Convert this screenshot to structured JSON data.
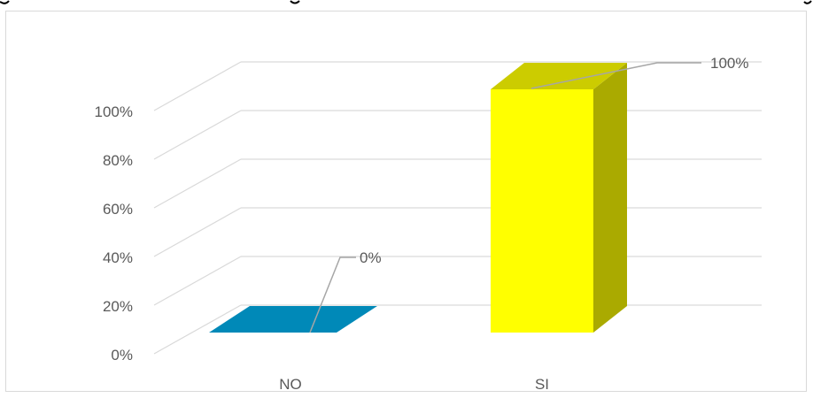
{
  "chart_data": {
    "type": "bar",
    "title": "",
    "xlabel": "",
    "ylabel": "",
    "categories": [
      "NO",
      "SI"
    ],
    "values": [
      0,
      100
    ],
    "ylim": [
      0,
      100
    ],
    "y_ticks": [
      0,
      20,
      40,
      60,
      80,
      100
    ],
    "y_tick_labels": [
      "0%",
      "20%",
      "40%",
      "60%",
      "80%",
      "100%"
    ],
    "data_labels": [
      "0%",
      "100%"
    ],
    "grid": true,
    "legend": "none",
    "style": "3d-column",
    "colors": {
      "NO": {
        "front": "#0089B8",
        "top": "#0089B8",
        "side": "#006A8F"
      },
      "SI": {
        "front": "#FFFF00",
        "top": "#CCCC00",
        "side": "#AAAA00"
      },
      "gridline": "#D9D9D9",
      "leader": "#A6A6A6",
      "text": "#595959",
      "frame": "#D9D9D9"
    }
  }
}
